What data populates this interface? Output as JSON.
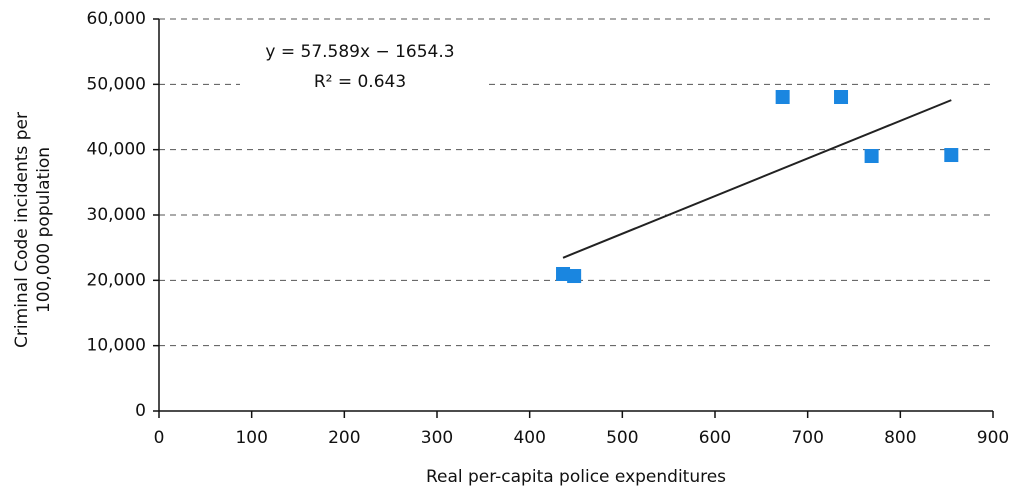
{
  "chart_data": {
    "type": "scatter",
    "xlabel": "Real per-capita police expenditures",
    "ylabel": [
      "Criminal Code incidents per",
      "100,000 population"
    ],
    "x": [
      436,
      448,
      673,
      736,
      769,
      855
    ],
    "series": [
      {
        "color": "#1a86e0",
        "values": [
          20970,
          20660,
          48060,
          48060,
          39030,
          39180
        ]
      }
    ],
    "trendline": {
      "label": "y = 57.589x − 1654.3",
      "r2_label": "R² = 0.643",
      "slope": 57.589,
      "intercept": -1654.3,
      "color": "#222222"
    },
    "xlim": [
      0,
      900
    ],
    "xticks": [
      0,
      100,
      200,
      300,
      400,
      500,
      600,
      700,
      800,
      900
    ],
    "ylim": [
      0,
      60000
    ],
    "yticks": [
      0,
      {
        "value": 10000,
        "label": "10,000"
      },
      {
        "value": 20000,
        "label": "20,000"
      },
      {
        "value": 30000,
        "label": "30,000"
      },
      {
        "value": 40000,
        "label": "40,000"
      },
      {
        "value": 50000,
        "label": "50,000"
      },
      {
        "value": 60000,
        "label": "60,000"
      }
    ],
    "grid": true
  }
}
